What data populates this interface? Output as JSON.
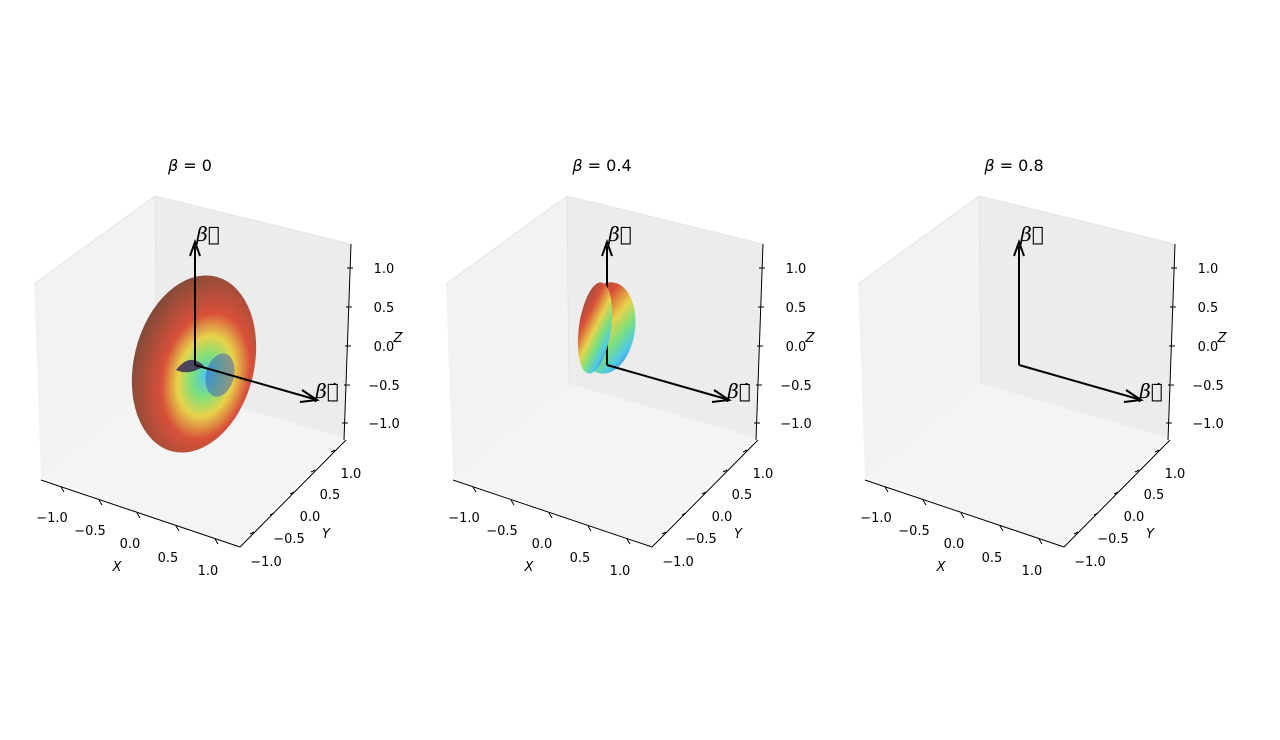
{
  "chart_data": [
    {
      "type": "surface3d",
      "title_symbol": "β",
      "title_value": "0",
      "beta": 0,
      "xlabel": "X",
      "ylabel": "Y",
      "zlabel": "Z",
      "xticks": [
        "−1.0",
        "−0.5",
        "0.0",
        "0.5",
        "1.0"
      ],
      "yticks": [
        "−1.0",
        "−0.5",
        "0.0",
        "0.5",
        "1.0"
      ],
      "zticks": [
        "1.0",
        "0.5",
        "0.0",
        "−0.5",
        "−1.0"
      ],
      "xlim": [
        -1.2,
        1.2
      ],
      "ylim": [
        -1.2,
        1.2
      ],
      "zlim": [
        -1.2,
        1.2
      ],
      "vector_labels": [
        "β⃗",
        "β⃗̇"
      ]
    },
    {
      "type": "surface3d",
      "title_symbol": "β",
      "title_value": "0.4",
      "beta": 0.4,
      "xlabel": "X",
      "ylabel": "Y",
      "zlabel": "Z",
      "xticks": [
        "−1.0",
        "−0.5",
        "0.0",
        "0.5",
        "1.0"
      ],
      "yticks": [
        "−1.0",
        "−0.5",
        "0.0",
        "0.5",
        "1.0"
      ],
      "zticks": [
        "1.0",
        "0.5",
        "0.0",
        "−0.5",
        "−1.0"
      ],
      "xlim": [
        -1.2,
        1.2
      ],
      "ylim": [
        -1.2,
        1.2
      ],
      "zlim": [
        -1.2,
        1.2
      ],
      "vector_labels": [
        "β⃗",
        "β⃗̇"
      ]
    },
    {
      "type": "surface3d",
      "title_symbol": "β",
      "title_value": "0.8",
      "beta": 0.8,
      "xlabel": "X",
      "ylabel": "Y",
      "zlabel": "Z",
      "xticks": [
        "−1.0",
        "−0.5",
        "0.0",
        "0.5",
        "1.0"
      ],
      "yticks": [
        "−1.0",
        "−0.5",
        "0.0",
        "0.5",
        "1.0"
      ],
      "zticks": [
        "1.0",
        "0.5",
        "0.0",
        "−0.5",
        "−1.0"
      ],
      "xlim": [
        -1.2,
        1.2
      ],
      "ylim": [
        -1.2,
        1.2
      ],
      "zlim": [
        -1.2,
        1.2
      ],
      "vector_labels": [
        "β⃗",
        "β⃗̇"
      ]
    }
  ],
  "colors": {
    "pane_left": "#f2f2f2",
    "pane_back": "#ececec",
    "pane_floor": "#f4f4f4",
    "surface_outer": "#7a4a3a",
    "surface_warm": "#d8503a",
    "surface_yellow": "#e8d24a",
    "surface_green": "#7fe07a",
    "surface_cyan": "#4ec8e8",
    "surface_blue": "#3344cc"
  }
}
